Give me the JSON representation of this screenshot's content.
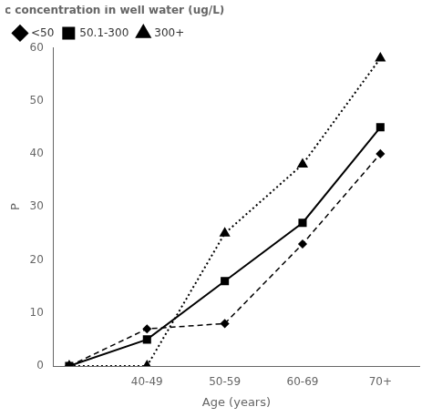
{
  "chart_data": {
    "type": "line",
    "x": [
      0,
      1,
      2,
      3,
      4
    ],
    "xlabel": "Age (years)",
    "ylabel": "P",
    "legend_title": "Arsenic concentration in well water (ug/L)",
    "series": [
      {
        "name": "<50",
        "color": "#000000",
        "values": [
          0,
          7,
          8,
          23,
          40
        ],
        "marker": "diamond",
        "line_style": "dashed"
      },
      {
        "name": "50.1-300",
        "color": "#000000",
        "values": [
          0,
          5,
          16,
          27,
          45
        ],
        "marker": "square",
        "line_style": "solid"
      },
      {
        "name": "300+",
        "color": "#000000",
        "values": [
          0,
          0,
          25,
          38,
          58
        ],
        "marker": "triangle",
        "line_style": "dotted"
      }
    ],
    "xlim": [
      -0.2,
      4.5
    ],
    "xticks": [
      {
        "value": 1,
        "label": "40-49"
      },
      {
        "value": 2,
        "label": "50-59"
      },
      {
        "value": 3,
        "label": "60-69"
      },
      {
        "value": 4,
        "label": "70+"
      }
    ],
    "ylim": [
      0,
      60
    ],
    "yticks": [
      0,
      10,
      20,
      30,
      40,
      50,
      60
    ],
    "grid": false,
    "legend": "upper left"
  }
}
